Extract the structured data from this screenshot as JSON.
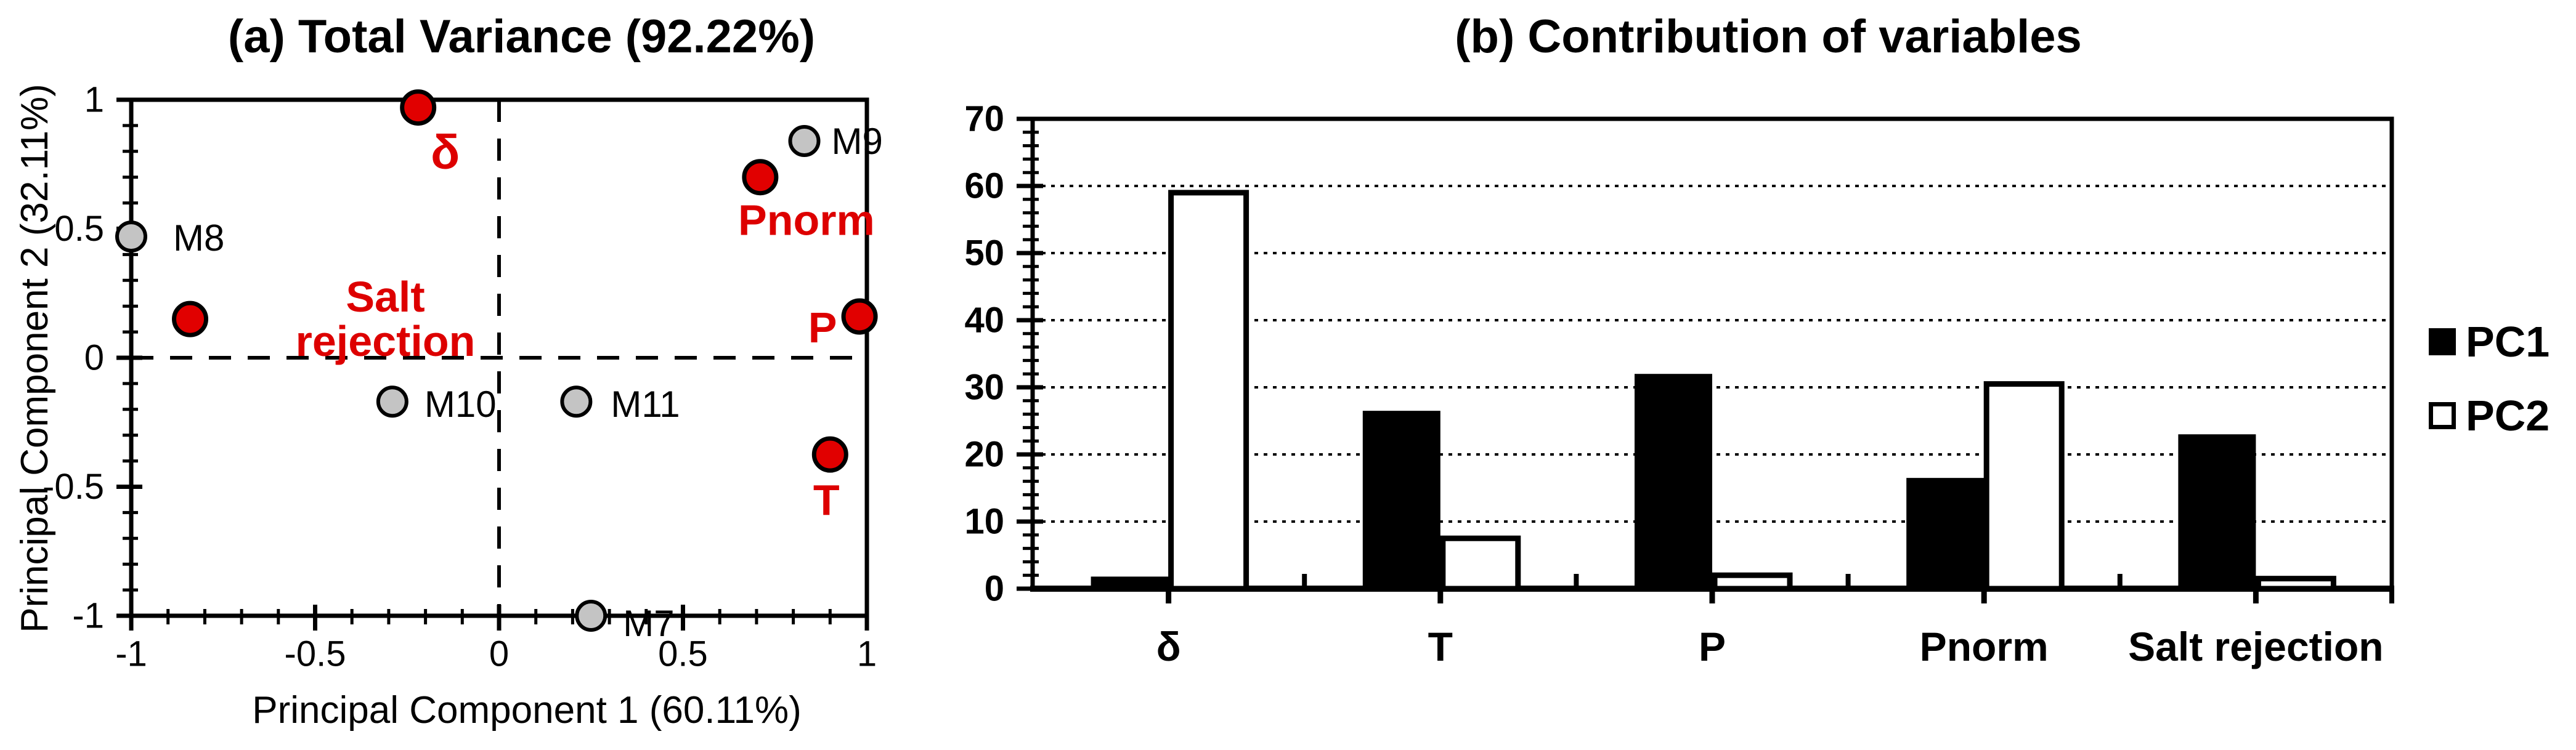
{
  "palette": {
    "marker_red": "#e10000",
    "label_red": "#dd0000",
    "marker_gray": "#c4c4c4",
    "line_black": "#000000",
    "background": "#ffffff"
  },
  "chart_data": [
    {
      "type": "scatter",
      "panel": "a",
      "title": "(a) Total Variance (92.22%)",
      "xlabel": "Principal Component 1 (60.11%)",
      "ylabel": "Principal Component 2 (32.11%)",
      "xlim": [
        -1,
        1
      ],
      "ylim": [
        -1,
        1
      ],
      "x_ticks": [
        -1,
        -0.5,
        0,
        0.5,
        1
      ],
      "y_ticks": [
        1,
        0.5,
        0,
        -0.5,
        -1
      ],
      "minor_tick_step": 0.1,
      "zero_lines": "dashed",
      "grid": false,
      "series": [
        {
          "name": "variables",
          "marker": "circle",
          "fill": "#e10000",
          "stroke": "#000000",
          "radius": 26,
          "stroke_width": 7,
          "label_color": "#dd0000",
          "label_weight": "bold",
          "label_size": 70,
          "points": [
            {
              "label": "δ",
              "x": -0.22,
              "y": 0.97,
              "anchor": "middle",
              "offset": [
                44,
                72
              ],
              "size": 78
            },
            {
              "label": "Pnorm",
              "x": 0.71,
              "y": 0.7,
              "anchor": "middle",
              "offset": [
                75,
                70
              ]
            },
            {
              "label": "P",
              "x": 0.98,
              "y": 0.16,
              "anchor": "middle",
              "offset": [
                -60,
                18
              ]
            },
            {
              "label": "T",
              "x": 0.9,
              "y": -0.375,
              "anchor": "middle",
              "offset": [
                -6,
                74
              ]
            },
            {
              "label": "Salt\nrejection",
              "x": -0.84,
              "y": 0.15,
              "anchor": "middle",
              "offset": [
                317,
                -36
              ]
            }
          ]
        },
        {
          "name": "membranes",
          "marker": "circle",
          "fill": "#c4c4c4",
          "stroke": "#000000",
          "radius": 23,
          "stroke_width": 6,
          "label_color": "#000000",
          "label_weight": "normal",
          "label_size": 60,
          "points": [
            {
              "label": "M8",
              "x": -1.0,
              "y": 0.47,
              "anchor": "start",
              "offset": [
                68,
                2
              ]
            },
            {
              "label": "M9",
              "x": 0.83,
              "y": 0.84,
              "anchor": "start",
              "offset": [
                44,
                0
              ]
            },
            {
              "label": "M10",
              "x": -0.29,
              "y": -0.17,
              "anchor": "start",
              "offset": [
                52,
                4
              ]
            },
            {
              "label": "M11",
              "x": 0.21,
              "y": -0.17,
              "anchor": "start",
              "offset": [
                56,
                4
              ]
            },
            {
              "label": "M7",
              "x": 0.25,
              "y": -1.0,
              "anchor": "start",
              "offset": [
                52,
                12
              ]
            }
          ]
        }
      ]
    },
    {
      "type": "bar",
      "panel": "b",
      "title": "(b) Contribution of variables",
      "categories": [
        "δ",
        "T",
        "P",
        "Pnorm",
        "Salt rejection"
      ],
      "series": [
        {
          "name": "PC1",
          "fill": "#000000",
          "stroke": "#000000",
          "values": [
            1.8,
            26.5,
            32,
            16.5,
            23
          ]
        },
        {
          "name": "PC2",
          "fill": "#ffffff",
          "stroke": "#000000",
          "values": [
            59,
            7.5,
            2,
            30.5,
            1.5
          ]
        }
      ],
      "ylim": [
        0,
        70
      ],
      "y_ticks": [
        0,
        10,
        20,
        30,
        40,
        50,
        60,
        70
      ],
      "y_minor_step": 2,
      "gridlines": {
        "style": "dotted",
        "at": [
          10,
          20,
          30,
          40,
          50,
          60
        ]
      },
      "legend_position": "right"
    }
  ]
}
